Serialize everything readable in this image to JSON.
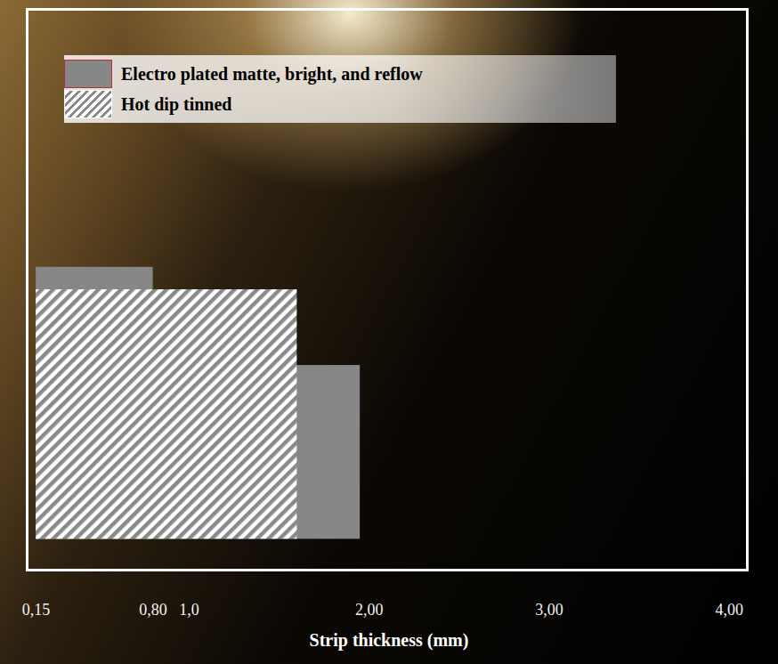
{
  "chart_data": {
    "type": "bar",
    "xlabel": "Strip thickness (mm)",
    "xlim": [
      0.1,
      4.1
    ],
    "xticks": [
      {
        "value": 0.15,
        "label": "0,15"
      },
      {
        "value": 0.8,
        "label": "0,80"
      },
      {
        "value": 1.0,
        "label": "1,0"
      },
      {
        "value": 2.0,
        "label": "2,00"
      },
      {
        "value": 3.0,
        "label": "3,00"
      },
      {
        "value": 4.0,
        "label": "4,00"
      }
    ],
    "ylim": [
      0,
      100
    ],
    "tick_labels": "x",
    "grid": false,
    "legend": "top-left",
    "series": [
      {
        "name": "Electro plated matte, bright, and reflow",
        "color": "#878787",
        "line_style": "solid",
        "values": [
          {
            "x_range": [
              0.15,
              0.8
            ],
            "y_range": [
              5.5,
              54
            ]
          },
          {
            "x_range": [
              0.15,
              1.95
            ],
            "y_range": [
              5.5,
              36.5
            ]
          }
        ]
      },
      {
        "name": "Hot dip tinned",
        "color": "#8a8a8a",
        "line_style": "hatched",
        "values": [
          {
            "x_range": [
              0.15,
              1.6
            ],
            "y_range": [
              5.5,
              50
            ]
          }
        ]
      }
    ]
  }
}
